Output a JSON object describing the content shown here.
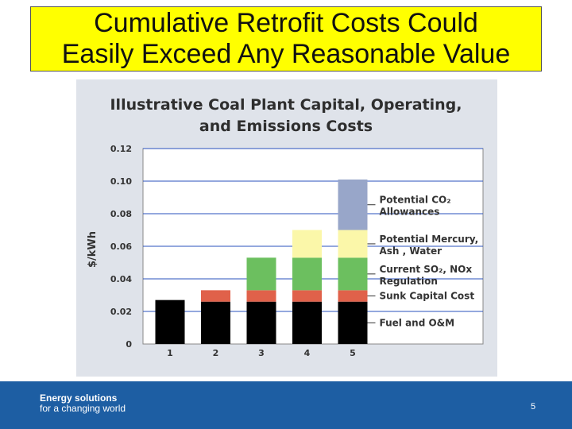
{
  "slide": {
    "title_line1": "Cumulative Retrofit Costs Could",
    "title_line2": "Easily Exceed Any Reasonable Value",
    "footer_line1": "Energy solutions",
    "footer_line2": "for a changing world",
    "page_number": "5"
  },
  "colors": {
    "title_bg": "#ffff00",
    "fuel": "#000000",
    "sunk": "#e0614a",
    "so2": "#6cbf5f",
    "mercury": "#fbf7a9",
    "co2": "#98a6c9",
    "footer": "#1d5ea3"
  },
  "chart_data": {
    "type": "bar",
    "stacked": true,
    "title_line1": "Illustrative Coal Plant Capital, Operating,",
    "title_line2": "and Emissions Costs",
    "ylabel": "$/kWh",
    "xlabel": "",
    "ylim": [
      0,
      0.12
    ],
    "yticks": [
      "0",
      "0.02",
      "0.04",
      "0.06",
      "0.08",
      "0.10",
      "0.12"
    ],
    "yticks_values": [
      0,
      0.02,
      0.04,
      0.06,
      0.08,
      0.1,
      0.12
    ],
    "categories": [
      "1",
      "2",
      "3",
      "4",
      "5"
    ],
    "series": [
      {
        "name": "Fuel and O&M",
        "color": "#000000",
        "values": [
          0.027,
          0.026,
          0.026,
          0.026,
          0.026
        ]
      },
      {
        "name": "Sunk Capital Cost",
        "color": "#e0614a",
        "values": [
          0,
          0.007,
          0.007,
          0.007,
          0.007
        ]
      },
      {
        "name": "Current SO2, NOx Regulation",
        "color": "#6cbf5f",
        "values": [
          0,
          0,
          0.02,
          0.02,
          0.02
        ]
      },
      {
        "name": "Potential Mercury, Ash, Water",
        "color": "#fbf7a9",
        "values": [
          0,
          0,
          0,
          0.017,
          0.017
        ]
      },
      {
        "name": "Potential CO2 Allowances",
        "color": "#98a6c9",
        "values": [
          0,
          0,
          0,
          0,
          0.031
        ]
      }
    ],
    "legend_labels": [
      {
        "line1": "Potential CO₂",
        "line2": "Allowances"
      },
      {
        "line1": "Potential Mercury,",
        "line2": "Ash , Water"
      },
      {
        "line1": "Current SO₂, NOx",
        "line2": "Regulation"
      },
      {
        "line1": "Sunk Capital Cost",
        "line2": ""
      },
      {
        "line1": "Fuel and O&M",
        "line2": ""
      }
    ],
    "legend_placement": "right",
    "grid": true
  }
}
